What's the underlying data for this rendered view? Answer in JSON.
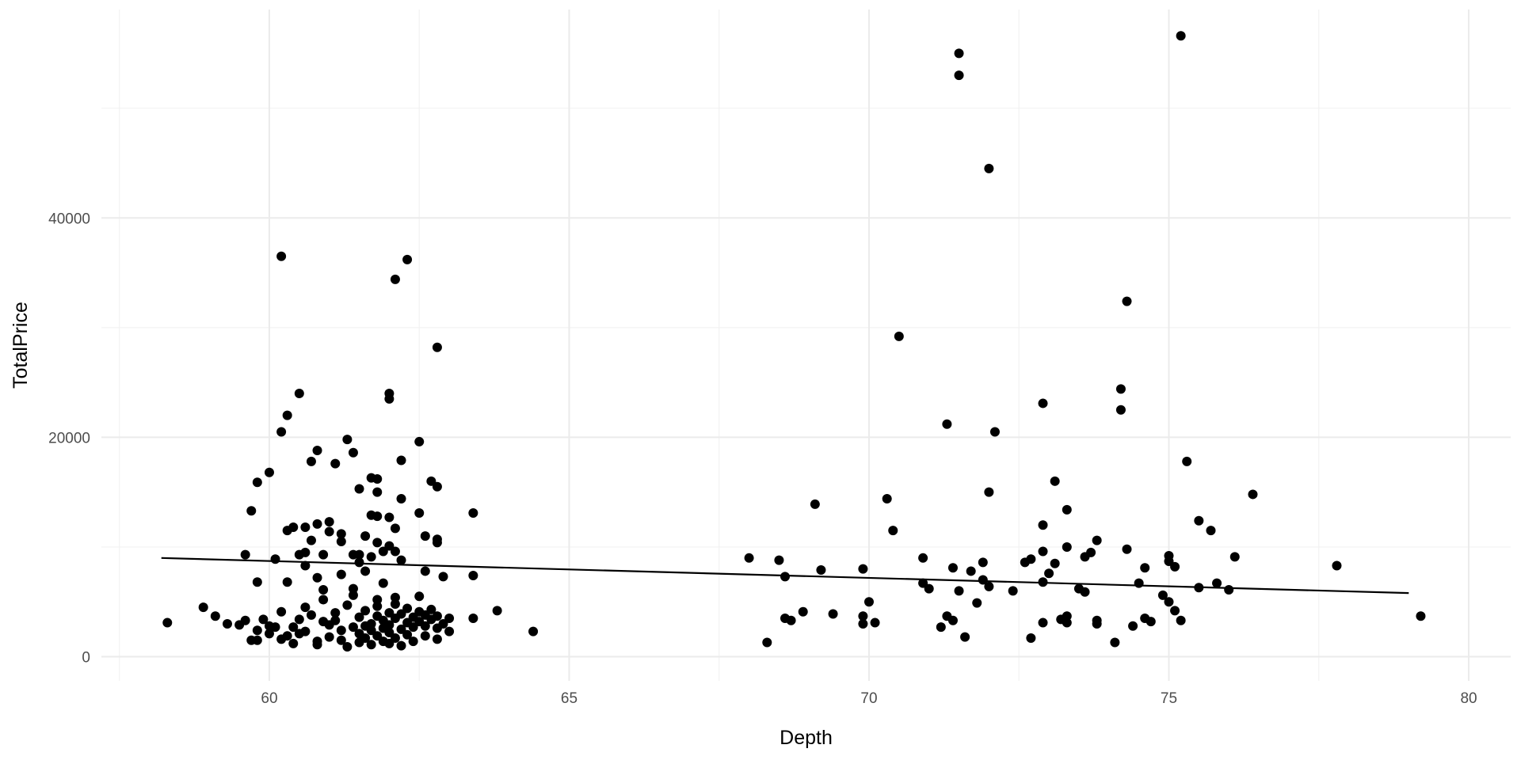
{
  "chart_data": {
    "type": "scatter",
    "title": "",
    "xlabel": "Depth",
    "ylabel": "TotalPrice",
    "xlim": [
      57.2,
      80.7
    ],
    "ylim": [
      -2200,
      59000
    ],
    "x_ticks": [
      60,
      65,
      70,
      75,
      80
    ],
    "y_ticks": [
      0,
      20000,
      40000
    ],
    "x_tick_labels": [
      "60",
      "65",
      "70",
      "75",
      "80"
    ],
    "y_tick_labels": [
      "0",
      "20000",
      "40000"
    ],
    "grid": true,
    "legend": "none",
    "trend_line": {
      "x": [
        58.2,
        79.0
      ],
      "y": [
        9000,
        5800
      ]
    },
    "points": [
      [
        58.3,
        3100
      ],
      [
        58.9,
        4500
      ],
      [
        59.1,
        3700
      ],
      [
        59.3,
        3000
      ],
      [
        59.5,
        2900
      ],
      [
        59.6,
        3300
      ],
      [
        59.7,
        1500
      ],
      [
        59.8,
        2400
      ],
      [
        59.8,
        1500
      ],
      [
        59.9,
        3400
      ],
      [
        60.0,
        2800
      ],
      [
        60.0,
        2100
      ],
      [
        60.1,
        2700
      ],
      [
        60.2,
        4100
      ],
      [
        60.2,
        1600
      ],
      [
        60.3,
        1900
      ],
      [
        60.4,
        2700
      ],
      [
        60.4,
        1200
      ],
      [
        60.5,
        2100
      ],
      [
        60.5,
        3400
      ],
      [
        60.6,
        4500
      ],
      [
        60.6,
        2300
      ],
      [
        60.7,
        3800
      ],
      [
        60.8,
        1400
      ],
      [
        60.8,
        1100
      ],
      [
        60.9,
        3200
      ],
      [
        60.9,
        5200
      ],
      [
        61.0,
        2900
      ],
      [
        61.0,
        1800
      ],
      [
        61.1,
        4000
      ],
      [
        61.1,
        3300
      ],
      [
        61.2,
        2400
      ],
      [
        61.2,
        1500
      ],
      [
        61.3,
        4700
      ],
      [
        61.3,
        900
      ],
      [
        61.4,
        2700
      ],
      [
        61.4,
        6200
      ],
      [
        61.5,
        3600
      ],
      [
        61.5,
        1300
      ],
      [
        61.5,
        2100
      ],
      [
        61.6,
        4200
      ],
      [
        61.6,
        1700
      ],
      [
        61.6,
        2800
      ],
      [
        61.7,
        3000
      ],
      [
        61.7,
        1100
      ],
      [
        61.7,
        2400
      ],
      [
        61.8,
        3700
      ],
      [
        61.8,
        1900
      ],
      [
        61.8,
        4600
      ],
      [
        61.9,
        2600
      ],
      [
        61.9,
        1400
      ],
      [
        61.9,
        3300
      ],
      [
        62.0,
        2200
      ],
      [
        62.0,
        4000
      ],
      [
        62.0,
        1200
      ],
      [
        62.0,
        2900
      ],
      [
        62.1,
        3500
      ],
      [
        62.1,
        1700
      ],
      [
        62.1,
        4800
      ],
      [
        62.2,
        2500
      ],
      [
        62.2,
        3900
      ],
      [
        62.2,
        1000
      ],
      [
        62.3,
        3100
      ],
      [
        62.3,
        4400
      ],
      [
        62.3,
        2000
      ],
      [
        62.4,
        3600
      ],
      [
        62.4,
        2700
      ],
      [
        62.4,
        1400
      ],
      [
        62.5,
        4100
      ],
      [
        62.5,
        3200
      ],
      [
        62.6,
        2800
      ],
      [
        62.6,
        3800
      ],
      [
        62.6,
        1900
      ],
      [
        62.7,
        3400
      ],
      [
        62.7,
        4300
      ],
      [
        62.8,
        2600
      ],
      [
        62.8,
        3700
      ],
      [
        62.9,
        3000
      ],
      [
        63.0,
        2300
      ],
      [
        63.0,
        3500
      ],
      [
        62.1,
        5400
      ],
      [
        61.4,
        5600
      ],
      [
        61.8,
        5200
      ],
      [
        62.5,
        5500
      ],
      [
        60.9,
        6100
      ],
      [
        62.6,
        7800
      ],
      [
        61.2,
        7500
      ],
      [
        60.3,
        6800
      ],
      [
        59.6,
        9300
      ],
      [
        59.7,
        13300
      ],
      [
        59.8,
        15900
      ],
      [
        59.8,
        6800
      ],
      [
        60.0,
        16800
      ],
      [
        60.1,
        8900
      ],
      [
        60.2,
        20500
      ],
      [
        60.2,
        36500
      ],
      [
        60.3,
        11500
      ],
      [
        60.3,
        22000
      ],
      [
        60.4,
        11800
      ],
      [
        60.5,
        9300
      ],
      [
        60.5,
        24000
      ],
      [
        60.6,
        9500
      ],
      [
        60.6,
        11800
      ],
      [
        60.6,
        8300
      ],
      [
        60.7,
        17800
      ],
      [
        60.7,
        10600
      ],
      [
        60.8,
        18800
      ],
      [
        60.8,
        12100
      ],
      [
        60.8,
        7200
      ],
      [
        60.9,
        9300
      ],
      [
        61.0,
        12300
      ],
      [
        61.0,
        11400
      ],
      [
        61.1,
        17600
      ],
      [
        61.2,
        11200
      ],
      [
        61.2,
        10500
      ],
      [
        61.3,
        19800
      ],
      [
        61.4,
        18600
      ],
      [
        61.4,
        9300
      ],
      [
        61.5,
        15300
      ],
      [
        61.5,
        8600
      ],
      [
        61.5,
        9300
      ],
      [
        61.6,
        11000
      ],
      [
        61.6,
        7800
      ],
      [
        61.7,
        16300
      ],
      [
        61.7,
        12900
      ],
      [
        61.7,
        9100
      ],
      [
        61.8,
        16200
      ],
      [
        61.8,
        15000
      ],
      [
        61.8,
        12800
      ],
      [
        61.8,
        10400
      ],
      [
        61.9,
        9600
      ],
      [
        61.9,
        6700
      ],
      [
        62.0,
        23500
      ],
      [
        62.0,
        24000
      ],
      [
        62.0,
        12700
      ],
      [
        62.0,
        10100
      ],
      [
        62.1,
        34400
      ],
      [
        62.1,
        11700
      ],
      [
        62.1,
        9600
      ],
      [
        62.2,
        17900
      ],
      [
        62.2,
        14400
      ],
      [
        62.2,
        8800
      ],
      [
        62.3,
        36200
      ],
      [
        62.5,
        19600
      ],
      [
        62.5,
        13100
      ],
      [
        62.6,
        11000
      ],
      [
        62.7,
        16000
      ],
      [
        62.8,
        28200
      ],
      [
        62.8,
        15500
      ],
      [
        62.8,
        10700
      ],
      [
        62.8,
        10400
      ],
      [
        62.9,
        7300
      ],
      [
        63.4,
        13100
      ],
      [
        63.4,
        7400
      ],
      [
        63.4,
        3500
      ],
      [
        63.8,
        4200
      ],
      [
        64.4,
        2300
      ],
      [
        62.8,
        1600
      ],
      [
        68.0,
        9000
      ],
      [
        68.3,
        1300
      ],
      [
        68.5,
        8800
      ],
      [
        68.6,
        7300
      ],
      [
        68.6,
        3500
      ],
      [
        68.7,
        3300
      ],
      [
        68.9,
        4100
      ],
      [
        69.1,
        13900
      ],
      [
        69.2,
        7900
      ],
      [
        69.4,
        3900
      ],
      [
        69.9,
        8000
      ],
      [
        69.9,
        3700
      ],
      [
        69.9,
        3000
      ],
      [
        70.0,
        5000
      ],
      [
        70.1,
        3100
      ],
      [
        70.3,
        14400
      ],
      [
        70.4,
        11500
      ],
      [
        70.5,
        29200
      ],
      [
        70.9,
        9000
      ],
      [
        70.9,
        6700
      ],
      [
        71.0,
        6200
      ],
      [
        71.2,
        2700
      ],
      [
        71.3,
        21200
      ],
      [
        71.3,
        3700
      ],
      [
        71.4,
        3300
      ],
      [
        71.4,
        8100
      ],
      [
        71.5,
        55000
      ],
      [
        71.5,
        53000
      ],
      [
        71.5,
        6000
      ],
      [
        71.6,
        1800
      ],
      [
        71.7,
        7800
      ],
      [
        71.8,
        4900
      ],
      [
        71.9,
        8600
      ],
      [
        71.9,
        7000
      ],
      [
        72.0,
        44500
      ],
      [
        72.0,
        15000
      ],
      [
        72.0,
        6400
      ],
      [
        72.1,
        20500
      ],
      [
        72.4,
        6000
      ],
      [
        72.6,
        8600
      ],
      [
        72.7,
        8900
      ],
      [
        72.7,
        1700
      ],
      [
        72.9,
        23100
      ],
      [
        72.9,
        12000
      ],
      [
        72.9,
        9600
      ],
      [
        72.9,
        6800
      ],
      [
        72.9,
        3100
      ],
      [
        73.0,
        7600
      ],
      [
        73.1,
        16000
      ],
      [
        73.1,
        8500
      ],
      [
        73.2,
        3400
      ],
      [
        73.3,
        13400
      ],
      [
        73.3,
        10000
      ],
      [
        73.3,
        3700
      ],
      [
        73.3,
        3100
      ],
      [
        73.5,
        6200
      ],
      [
        73.6,
        9100
      ],
      [
        73.6,
        5900
      ],
      [
        73.7,
        9500
      ],
      [
        73.8,
        10600
      ],
      [
        73.8,
        3300
      ],
      [
        73.8,
        3000
      ],
      [
        74.1,
        1300
      ],
      [
        74.2,
        24400
      ],
      [
        74.2,
        22500
      ],
      [
        74.3,
        32400
      ],
      [
        74.3,
        9800
      ],
      [
        74.4,
        2800
      ],
      [
        74.5,
        6700
      ],
      [
        74.6,
        8100
      ],
      [
        74.6,
        3500
      ],
      [
        74.7,
        3200
      ],
      [
        74.9,
        5600
      ],
      [
        75.0,
        9200
      ],
      [
        75.0,
        8700
      ],
      [
        75.0,
        5000
      ],
      [
        75.1,
        8200
      ],
      [
        75.1,
        4200
      ],
      [
        75.2,
        56600
      ],
      [
        75.2,
        3300
      ],
      [
        75.3,
        17800
      ],
      [
        75.5,
        12400
      ],
      [
        75.5,
        6300
      ],
      [
        75.7,
        11500
      ],
      [
        75.8,
        6700
      ],
      [
        76.0,
        6100
      ],
      [
        76.1,
        9100
      ],
      [
        76.4,
        14800
      ],
      [
        77.8,
        8300
      ],
      [
        79.2,
        3700
      ]
    ]
  }
}
